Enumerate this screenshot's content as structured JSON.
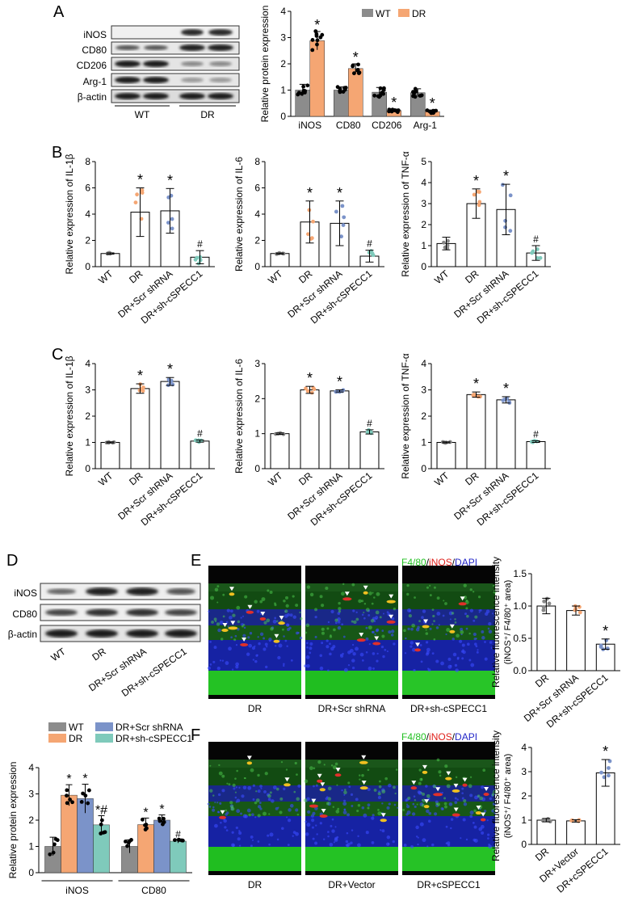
{
  "panel_letters": {
    "A": "A",
    "B": "B",
    "C": "C",
    "D": "D",
    "E": "E",
    "F": "F"
  },
  "colors": {
    "wt": "#8c8c8c",
    "dr": "#f5a673",
    "scr": "#7b93c9",
    "sh": "#7fcabb",
    "green": "#22d022",
    "red": "#e0201a",
    "blue": "#2226c8"
  },
  "blot_A": {
    "rows": [
      "iNOS",
      "CD80",
      "CD206",
      "Arg-1",
      "β-actin"
    ],
    "groups": [
      "WT",
      "DR"
    ]
  },
  "blot_D": {
    "rows": [
      "iNOS",
      "CD80",
      "β-actin"
    ],
    "lanes": [
      "WT",
      "DR",
      "DR+Scr shRNA",
      "DR+sh-cSPECC1"
    ]
  },
  "stain": {
    "f480": "F4/80",
    "sep1": "/",
    "inos": "iNOS",
    "sep2": "/",
    "dapi": "DAPI"
  },
  "micro_E": [
    "DR",
    "DR+Scr shRNA",
    "DR+sh-cSPECC1"
  ],
  "micro_F": [
    "DR",
    "DR+Vector",
    "DR+cSPECC1"
  ],
  "chart_data": [
    {
      "id": "A",
      "type": "bar",
      "ylabel": "Relative protein expression",
      "ylim": [
        0,
        4
      ],
      "yticks": [
        "0",
        "1",
        "2",
        "3",
        "4"
      ],
      "categories": [
        "iNOS",
        "CD80",
        "CD206",
        "Arg-1"
      ],
      "series": [
        {
          "name": "WT",
          "values": [
            1.0,
            1.0,
            0.92,
            0.9
          ]
        },
        {
          "name": "DR",
          "values": [
            2.88,
            1.82,
            0.22,
            0.18
          ]
        }
      ],
      "annotations": [
        {
          "cat": "iNOS",
          "series": "DR",
          "text": "*"
        },
        {
          "cat": "CD80",
          "series": "DR",
          "text": "*"
        },
        {
          "cat": "CD206",
          "series": "DR",
          "text": "*"
        },
        {
          "cat": "Arg-1",
          "series": "DR",
          "text": "*"
        }
      ]
    },
    {
      "id": "B1",
      "type": "bar",
      "ylabel": "Relative expression of IL-1β",
      "ylim": [
        0,
        8
      ],
      "yticks": [
        "0",
        "2",
        "4",
        "6",
        "8"
      ],
      "categories": [
        "WT",
        "DR",
        "DR+Scr shRNA",
        "DR+sh-cSPECC1"
      ],
      "values": [
        1.0,
        4.15,
        4.25,
        0.72
      ],
      "errors": [
        0.05,
        1.85,
        1.7,
        0.5
      ],
      "marks": [
        "",
        "*",
        "*",
        "#"
      ]
    },
    {
      "id": "B2",
      "type": "bar",
      "ylabel": "Relative expression of IL-6",
      "ylim": [
        0,
        8
      ],
      "yticks": [
        "0",
        "2",
        "4",
        "6",
        "8"
      ],
      "categories": [
        "WT",
        "DR",
        "DR+Scr shRNA",
        "DR+sh-cSPECC1"
      ],
      "values": [
        1.0,
        3.4,
        3.3,
        0.8
      ],
      "errors": [
        0.04,
        1.6,
        1.7,
        0.45
      ],
      "marks": [
        "",
        "*",
        "*",
        "#"
      ]
    },
    {
      "id": "B3",
      "type": "bar",
      "ylabel": "Relative expression of TNF-α",
      "ylim": [
        0,
        5
      ],
      "yticks": [
        "0",
        "1",
        "2",
        "3",
        "4",
        "5"
      ],
      "categories": [
        "WT",
        "DR",
        "DR+Scr shRNA",
        "DR+sh-cSPECC1"
      ],
      "values": [
        1.1,
        3.0,
        2.72,
        0.65
      ],
      "errors": [
        0.3,
        0.7,
        1.2,
        0.35
      ],
      "marks": [
        "",
        "*",
        "*",
        "#"
      ]
    },
    {
      "id": "C1",
      "type": "bar",
      "ylabel": "Relative expression of IL-1β",
      "ylim": [
        0,
        4
      ],
      "yticks": [
        "0",
        "1",
        "2",
        "3",
        "4"
      ],
      "categories": [
        "WT",
        "DR",
        "DR+Scr shRNA",
        "DR+sh-cSPECC1"
      ],
      "values": [
        1.0,
        3.05,
        3.32,
        1.05
      ],
      "errors": [
        0.02,
        0.18,
        0.15,
        0.04
      ],
      "marks": [
        "",
        "*",
        "*",
        "#"
      ]
    },
    {
      "id": "C2",
      "type": "bar",
      "ylabel": "Relative expression of IL-6",
      "ylim": [
        0,
        3
      ],
      "yticks": [
        "0",
        "1",
        "2",
        "3"
      ],
      "categories": [
        "WT",
        "DR",
        "DR+Scr shRNA",
        "DR+sh-cSPECC1"
      ],
      "values": [
        1.0,
        2.25,
        2.22,
        1.05
      ],
      "errors": [
        0.02,
        0.1,
        0.03,
        0.06
      ],
      "marks": [
        "",
        "*",
        "*",
        "#"
      ]
    },
    {
      "id": "C3",
      "type": "bar",
      "ylabel": "Relative expression of TNF-α",
      "ylim": [
        0,
        4
      ],
      "yticks": [
        "0",
        "1",
        "2",
        "3",
        "4"
      ],
      "categories": [
        "WT",
        "DR",
        "DR+Scr shRNA",
        "DR+sh-cSPECC1"
      ],
      "values": [
        1.0,
        2.82,
        2.62,
        1.03
      ],
      "errors": [
        0.02,
        0.1,
        0.12,
        0.03
      ],
      "marks": [
        "",
        "*",
        "*",
        "#"
      ]
    },
    {
      "id": "D",
      "type": "bar",
      "ylabel": "Relative protein expression",
      "ylim": [
        0,
        4
      ],
      "yticks": [
        "0",
        "1",
        "2",
        "3",
        "4"
      ],
      "categories": [
        "iNOS",
        "CD80"
      ],
      "series": [
        {
          "name": "WT",
          "values": [
            1.0,
            1.0
          ]
        },
        {
          "name": "DR",
          "values": [
            2.95,
            1.83
          ]
        },
        {
          "name": "DR+Scr shRNA",
          "values": [
            2.82,
            2.0
          ]
        },
        {
          "name": "DR+sh-cSPECC1",
          "values": [
            1.82,
            1.2
          ]
        }
      ],
      "errors": [
        [
          0.35,
          0.25
        ],
        [
          0.4,
          0.25
        ],
        [
          0.55,
          0.2
        ],
        [
          0.35,
          0.07
        ]
      ],
      "marks": [
        [
          "",
          "*",
          "*",
          "*#"
        ],
        [
          "",
          "*",
          "*",
          "#"
        ]
      ]
    },
    {
      "id": "E",
      "type": "bar",
      "ylabel": "Relative fluorescence intensity",
      "ylabel2": "(iNOS⁺/ F4/80⁺ area)",
      "ylim": [
        0,
        1.5
      ],
      "yticks": [
        "0.0",
        "0.5",
        "1.0",
        "1.5"
      ],
      "categories": [
        "DR",
        "DR+Scr shRNA",
        "DR+sh-cSPECC1"
      ],
      "values": [
        1.0,
        0.93,
        0.41
      ],
      "errors": [
        0.12,
        0.07,
        0.08
      ],
      "marks": [
        "",
        "",
        "*"
      ]
    },
    {
      "id": "F",
      "type": "bar",
      "ylabel": "Relative fluorescence intensity",
      "ylabel2": "(iNOS⁺/ F4/80⁺ area)",
      "ylim": [
        0,
        4
      ],
      "yticks": [
        "0",
        "1",
        "2",
        "3",
        "4"
      ],
      "categories": [
        "DR",
        "DR+Vector",
        "DR+cSPECC1"
      ],
      "values": [
        1.0,
        0.97,
        2.95
      ],
      "errors": [
        0.07,
        0.05,
        0.55
      ],
      "marks": [
        "",
        "",
        "*"
      ]
    }
  ]
}
